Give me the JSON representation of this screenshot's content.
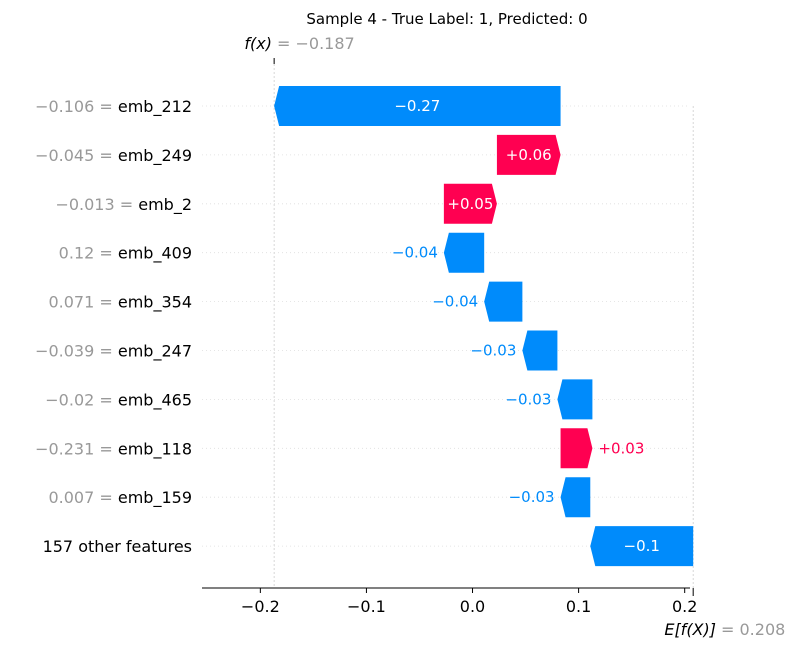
{
  "chart_data": {
    "type": "bar",
    "title": "Sample 4 - True Label: 1, Predicted: 0",
    "fx_label": "f(x)",
    "fx_value": "= −0.187",
    "fx": -0.187,
    "ex_label": "E[f(X)]",
    "ex_value": "= 0.208",
    "base_value": 0.208,
    "xlim": [
      -0.255,
      0.205
    ],
    "xticks": [
      -0.2,
      -0.1,
      0.0,
      0.1,
      0.2
    ],
    "xtick_labels": [
      "−0.2",
      "−0.1",
      "0.0",
      "0.1",
      "0.2"
    ],
    "features": [
      {
        "value_text": "−0.106 =",
        "name": "emb_212",
        "start": 0.083,
        "end": -0.187,
        "label": "−0.27"
      },
      {
        "value_text": "−0.045 =",
        "name": "emb_249",
        "start": 0.023,
        "end": 0.083,
        "label": "+0.06"
      },
      {
        "value_text": "−0.013 =",
        "name": "emb_2",
        "start": -0.027,
        "end": 0.023,
        "label": "+0.05"
      },
      {
        "value_text": "0.12 =",
        "name": "emb_409",
        "start": 0.011,
        "end": -0.027,
        "label": "−0.04"
      },
      {
        "value_text": "0.071 =",
        "name": "emb_354",
        "start": 0.047,
        "end": 0.011,
        "label": "−0.04"
      },
      {
        "value_text": "−0.039 =",
        "name": "emb_247",
        "start": 0.08,
        "end": 0.047,
        "label": "−0.03"
      },
      {
        "value_text": "−0.02 =",
        "name": "emb_465",
        "start": 0.113,
        "end": 0.08,
        "label": "−0.03"
      },
      {
        "value_text": "−0.231 =",
        "name": "emb_118",
        "start": 0.083,
        "end": 0.113,
        "label": "+0.03"
      },
      {
        "value_text": "0.007 =",
        "name": "emb_159",
        "start": 0.111,
        "end": 0.083,
        "label": "−0.03"
      },
      {
        "value_text": "",
        "name": "157 other features",
        "start": 0.208,
        "end": 0.111,
        "label": "−0.1"
      }
    ],
    "colors": {
      "positive": "#ff0051",
      "negative": "#008bfb",
      "axis": "#000000",
      "grid": "#cccccc",
      "meta": "#999999"
    }
  }
}
